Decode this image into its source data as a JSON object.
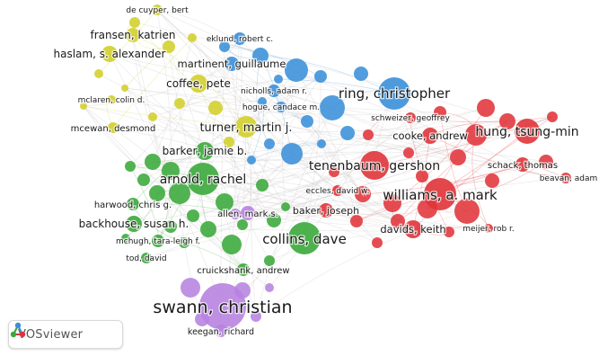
{
  "brand": {
    "name": "VOSviewer",
    "icon": "vosviewer-logo-icon"
  },
  "colors": {
    "yellow": "#d2cf2a",
    "blue": "#3a8fd8",
    "red": "#e0343a",
    "green": "#3aa83a",
    "purple": "#b783e0",
    "edge": "#cfc8c8"
  },
  "authors": [
    {
      "id": "de-cuyper-bert",
      "label": "de cuyper, bert",
      "cluster": "yellow"
    },
    {
      "id": "fransen-katrien",
      "label": "fransen, katrien",
      "cluster": "yellow"
    },
    {
      "id": "haslam-s-alexander",
      "label": "haslam, s. alexander",
      "cluster": "yellow"
    },
    {
      "id": "eklund-robert-c",
      "label": "eklund, robert c.",
      "cluster": "blue"
    },
    {
      "id": "martinent-guillaume",
      "label": "martinent, guillaume",
      "cluster": "blue"
    },
    {
      "id": "coffee-pete",
      "label": "coffee, pete",
      "cluster": "yellow"
    },
    {
      "id": "nicholls-adam-r",
      "label": "nicholls, adam r.",
      "cluster": "blue"
    },
    {
      "id": "mclaren-colin-d",
      "label": "mclaren, colin d.",
      "cluster": "yellow"
    },
    {
      "id": "hogue-candace-m",
      "label": "hogue, candace m.",
      "cluster": "blue"
    },
    {
      "id": "ring-christopher",
      "label": "ring, christopher",
      "cluster": "blue"
    },
    {
      "id": "schweizer-geoffrey",
      "label": "schweizer, geoffrey",
      "cluster": "red"
    },
    {
      "id": "mcewan-desmond",
      "label": "mcewan, desmond",
      "cluster": "yellow"
    },
    {
      "id": "turner-martin-j",
      "label": "turner, martin j.",
      "cluster": "yellow"
    },
    {
      "id": "cooke-andrew",
      "label": "cooke, andrew",
      "cluster": "red"
    },
    {
      "id": "hung-tsung-min",
      "label": "hung, tsung-min",
      "cluster": "red"
    },
    {
      "id": "barker-jamie-b",
      "label": "barker, jamie b.",
      "cluster": "green"
    },
    {
      "id": "tenenbaum-gershon",
      "label": "tenenbaum, gershon",
      "cluster": "red"
    },
    {
      "id": "schack-thomas",
      "label": "schack, thomas",
      "cluster": "red"
    },
    {
      "id": "beavan-adam",
      "label": "beavan, adam",
      "cluster": "red"
    },
    {
      "id": "arnold-rachel",
      "label": "arnold, rachel",
      "cluster": "green"
    },
    {
      "id": "eccles-david-w",
      "label": "eccles, david w.",
      "cluster": "red"
    },
    {
      "id": "williams-a-mark",
      "label": "williams, a. mark",
      "cluster": "red"
    },
    {
      "id": "harwood-chris-g",
      "label": "harwood, chris g.",
      "cluster": "green"
    },
    {
      "id": "allen-mark-s",
      "label": "allen, mark s.",
      "cluster": "purple"
    },
    {
      "id": "baker-joseph",
      "label": "baker, joseph",
      "cluster": "red"
    },
    {
      "id": "backhouse-susan-h",
      "label": "backhouse, susan h.",
      "cluster": "green"
    },
    {
      "id": "davids-keith",
      "label": "davids, keith",
      "cluster": "red"
    },
    {
      "id": "meijer-rob-r",
      "label": "meijer, rob r.",
      "cluster": "red"
    },
    {
      "id": "mchugh-tara-leigh-f",
      "label": "mchugh, tara-leigh f.",
      "cluster": "green"
    },
    {
      "id": "collins-dave",
      "label": "collins, dave",
      "cluster": "green"
    },
    {
      "id": "tod-david",
      "label": "tod, david",
      "cluster": "green"
    },
    {
      "id": "cruickshank-andrew",
      "label": "cruickshank, andrew",
      "cluster": "green"
    },
    {
      "id": "swann-christian",
      "label": "swann, christian",
      "cluster": "purple"
    },
    {
      "id": "keegan-richard",
      "label": "keegan, richard",
      "cluster": "purple"
    }
  ]
}
